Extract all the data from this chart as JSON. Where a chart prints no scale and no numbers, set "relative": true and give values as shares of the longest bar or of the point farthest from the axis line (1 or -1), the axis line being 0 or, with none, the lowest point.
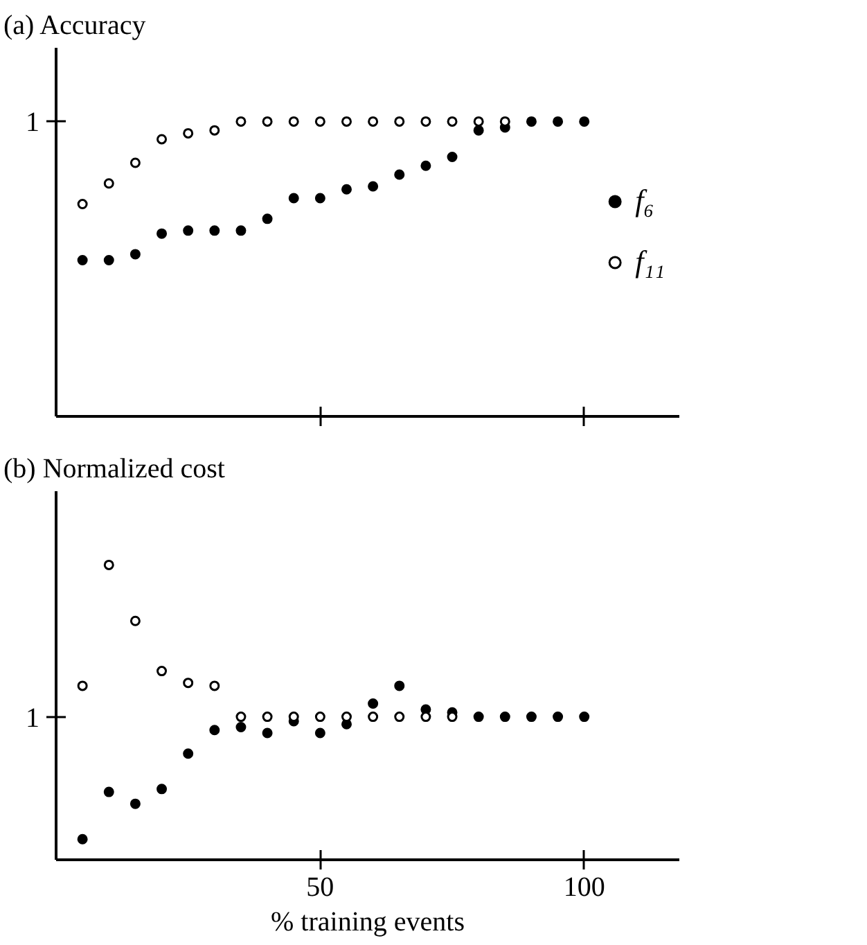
{
  "chart_data": [
    {
      "type": "scatter",
      "title": "(a) Accuracy",
      "x": [
        5,
        10,
        15,
        20,
        25,
        30,
        35,
        40,
        45,
        50,
        55,
        60,
        65,
        70,
        75,
        80,
        85,
        90,
        95,
        100
      ],
      "xlim": [
        0,
        118
      ],
      "xticks": [
        50,
        100
      ],
      "relative": true,
      "tick_labels": false,
      "grid": false,
      "legend": "right",
      "marker": "circle",
      "annotations": [
        "1"
      ],
      "series": [
        {
          "name": "f₆",
          "color": "#000000",
          "values": [
            0.53,
            0.53,
            0.55,
            0.62,
            0.63,
            0.63,
            0.63,
            0.67,
            0.74,
            0.74,
            0.77,
            0.78,
            0.82,
            0.85,
            0.88,
            0.97,
            0.98,
            1,
            1,
            1
          ]
        },
        {
          "name": "f₁₁",
          "color": "#ffffff",
          "values": [
            0.72,
            0.79,
            0.86,
            0.94,
            0.96,
            0.97,
            1,
            1,
            1,
            1,
            1,
            1,
            1,
            1,
            1,
            1,
            1,
            null,
            null,
            null
          ]
        }
      ]
    },
    {
      "type": "scatter",
      "title": "(b) Normalized cost",
      "xlabel": "% training events",
      "x": [
        5,
        10,
        15,
        20,
        25,
        30,
        35,
        40,
        45,
        50,
        55,
        60,
        65,
        70,
        75,
        80,
        85,
        90,
        95,
        100
      ],
      "xlim": [
        0,
        118
      ],
      "xticks": [
        50,
        100
      ],
      "relative": true,
      "grid": false,
      "marker": "circle",
      "annotations": [
        "1"
      ],
      "series": [
        {
          "color": "#000000",
          "values": [
            0.07,
            0.23,
            0.19,
            0.24,
            0.36,
            0.44,
            0.45,
            0.43,
            0.47,
            0.43,
            0.46,
            0.53,
            0.59,
            0.51,
            0.5,
            0.485,
            0.485,
            0.485,
            0.485,
            0.485
          ]
        },
        {
          "color": "#ffffff",
          "values": [
            0.59,
            1,
            0.81,
            0.64,
            0.6,
            0.59,
            0.485,
            0.485,
            0.485,
            0.485,
            0.485,
            0.485,
            0.485,
            0.485,
            0.485,
            null,
            null,
            null,
            null,
            null
          ]
        }
      ]
    }
  ]
}
